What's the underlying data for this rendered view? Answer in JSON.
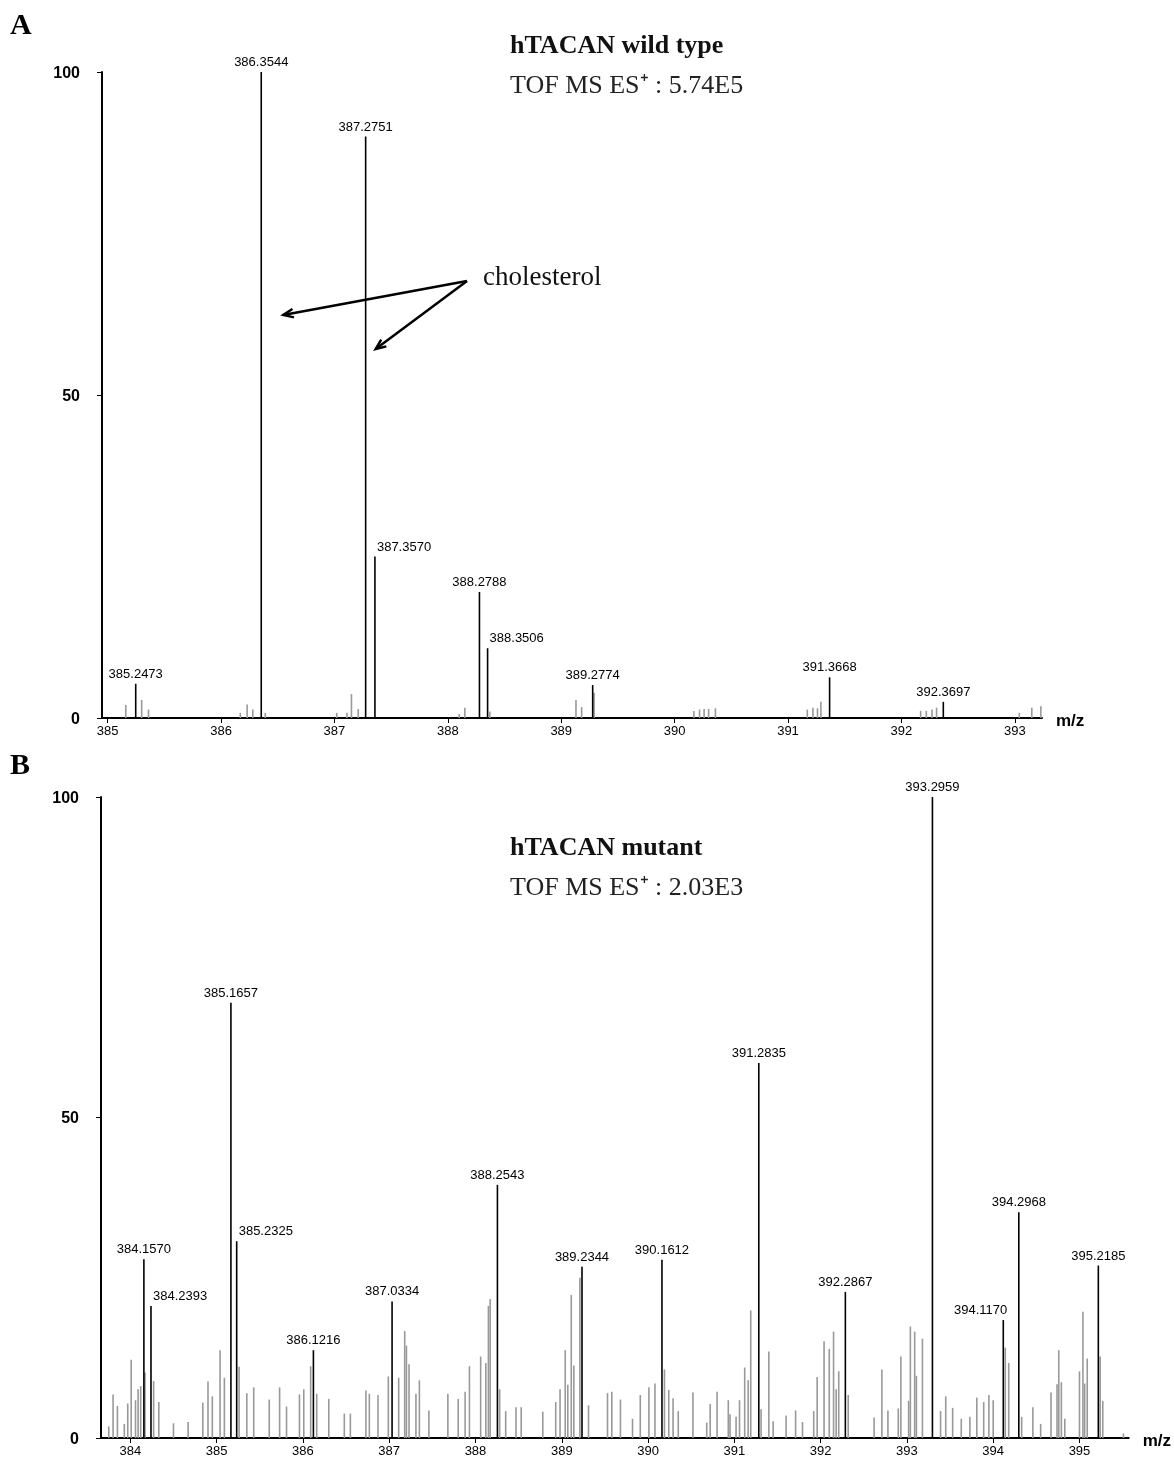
{
  "chart_data": [
    {
      "type": "bar",
      "title": "hTACAN wild type",
      "subtitle": "TOF MS ES⁺ : 5.74E5",
      "xlabel": "m/z",
      "xlim": [
        384.95,
        393.24
      ],
      "xticks": [
        385,
        386,
        387,
        388,
        389,
        390,
        391,
        392,
        393
      ],
      "ylim": [
        0,
        100
      ],
      "yticks": [
        0,
        50,
        100
      ],
      "series": [
        {
          "color": "#999999",
          "x": [
            385.16,
            385.3,
            385.36,
            386.17,
            386.23,
            386.28,
            386.39,
            387.02,
            387.11,
            387.15,
            387.21,
            388.1,
            388.15,
            388.37,
            389.13,
            389.18,
            389.29,
            390.17,
            390.22,
            390.26,
            390.3,
            390.36,
            391.17,
            391.22,
            391.26,
            391.29,
            392.17,
            392.22,
            392.27,
            392.31,
            393.04,
            393.15,
            393.23
          ],
          "values": [
            2.0,
            2.8,
            1.3,
            0.8,
            2.1,
            1.3,
            0.8,
            0.8,
            0.8,
            3.7,
            1.4,
            0.6,
            1.6,
            1.0,
            2.8,
            1.7,
            3.9,
            1.1,
            1.3,
            1.4,
            1.4,
            1.5,
            1.3,
            1.6,
            1.5,
            2.5,
            1.1,
            1.1,
            1.3,
            1.6,
            0.8,
            1.6,
            1.8
          ]
        },
        {
          "color": "#000000",
          "x": [
            385.2473,
            386.3544,
            387.2751,
            387.357,
            388.2788,
            388.3506,
            389.2774,
            391.3668,
            392.3697
          ],
          "values": [
            5.3,
            100,
            90,
            25,
            19.5,
            10.8,
            5.1,
            6.3,
            2.5
          ]
        }
      ],
      "annotations": [
        "A",
        "cholesterol",
        {
          "text": "385.2473",
          "x": 385.2473,
          "y": 5.3
        },
        {
          "text": "386.3544",
          "x": 386.3544,
          "y": 100
        },
        {
          "text": "387.2751",
          "x": 387.2751,
          "y": 90
        },
        {
          "text": "387.3570",
          "x": 387.357,
          "y": 25
        },
        {
          "text": "388.2788",
          "x": 388.2788,
          "y": 19.5
        },
        {
          "text": "388.3506",
          "x": 388.3506,
          "y": 10.8
        },
        {
          "text": "389.2774",
          "x": 389.2774,
          "y": 5.1
        },
        {
          "text": "391.3668",
          "x": 391.3668,
          "y": 6.3
        },
        {
          "text": "392.3697",
          "x": 392.3697,
          "y": 2.5
        }
      ]
    },
    {
      "type": "bar",
      "title": "hTACAN mutant",
      "subtitle": "TOF MS ES⁺ : 2.03E3",
      "xlabel": "m/z",
      "xlim": [
        383.66,
        395.57
      ],
      "xticks": [
        384,
        385,
        386,
        387,
        388,
        389,
        390,
        391,
        392,
        393,
        394,
        395
      ],
      "ylim": [
        0,
        100
      ],
      "yticks": [
        0,
        50,
        100
      ],
      "series": [
        {
          "color": "#999999",
          "x": [
            383.75,
            383.8,
            383.85,
            383.93,
            383.97,
            384.01,
            384.06,
            384.09,
            384.12,
            384.17,
            384.27,
            384.33,
            384.5,
            384.67,
            384.84,
            384.9,
            384.95,
            385.04,
            385.09,
            385.26,
            385.35,
            385.43,
            385.61,
            385.73,
            385.81,
            385.96,
            386.01,
            386.09,
            386.16,
            386.3,
            386.48,
            386.55,
            386.73,
            386.77,
            386.87,
            386.99,
            387.04,
            387.11,
            387.18,
            387.2,
            387.23,
            387.31,
            387.35,
            387.46,
            387.68,
            387.8,
            387.88,
            387.93,
            388.06,
            388.12,
            388.15,
            388.17,
            388.28,
            388.35,
            388.47,
            388.53,
            388.78,
            388.93,
            388.98,
            389.04,
            389.07,
            389.11,
            389.14,
            389.21,
            389.31,
            389.53,
            389.58,
            389.68,
            389.82,
            389.91,
            390.01,
            390.08,
            390.19,
            390.24,
            390.29,
            390.35,
            390.52,
            390.68,
            390.72,
            390.8,
            390.93,
            390.95,
            391.02,
            391.06,
            391.12,
            391.16,
            391.19,
            391.31,
            391.4,
            391.45,
            391.6,
            391.71,
            391.79,
            391.92,
            391.96,
            392.04,
            392.1,
            392.15,
            392.18,
            392.21,
            392.32,
            392.62,
            392.71,
            392.78,
            392.9,
            392.93,
            393.02,
            393.04,
            393.09,
            393.11,
            393.18,
            393.39,
            393.45,
            393.53,
            393.63,
            393.73,
            393.81,
            393.89,
            393.95,
            394.0,
            394.14,
            394.18,
            394.33,
            394.46,
            394.55,
            394.67,
            394.74,
            394.76,
            394.79,
            394.83,
            395.0,
            395.04,
            395.06,
            395.09,
            395.24,
            395.27,
            395.51
          ],
          "values": [
            1.8,
            6.8,
            5.0,
            2.2,
            5.4,
            12.2,
            5.9,
            7.6,
            8.1,
            10.2,
            8.9,
            5.6,
            2.3,
            2.5,
            5.5,
            8.8,
            6.5,
            13.7,
            9.4,
            11.1,
            7.0,
            7.9,
            6.0,
            7.9,
            4.9,
            6.8,
            7.6,
            11.2,
            6.9,
            6.1,
            3.8,
            3.8,
            7.4,
            6.9,
            6.7,
            9.6,
            null,
            9.4,
            16.7,
            14.4,
            11.5,
            6.9,
            9.0,
            4.3,
            6.9,
            6.1,
            7.2,
            11.2,
            12.7,
            11.7,
            20.6,
            21.7,
            7.6,
            4.2,
            4.8,
            4.8,
            4.1,
            5.6,
            7.6,
            13.7,
            8.3,
            22.3,
            11.3,
            25.0,
            5.1,
            7.0,
            7.2,
            6.0,
            3.0,
            6.7,
            7.9,
            8.5,
            10.7,
            7.5,
            6.2,
            4.2,
            7.1,
            2.4,
            5.3,
            7.2,
            5.9,
            3.7,
            3.3,
            5.9,
            11.0,
            9.0,
            19.9,
            4.5,
            13.5,
            2.6,
            3.5,
            4.3,
            2.5,
            4.2,
            9.5,
            15.1,
            13.9,
            16.6,
            7.6,
            10.4,
            6.7,
            3.2,
            10.7,
            4.3,
            4.6,
            12.7,
            5.8,
            17.4,
            16.6,
            9.7,
            15.5,
            4.2,
            6.5,
            4.7,
            3.0,
            3.3,
            6.3,
            5.6,
            6.7,
            5.9,
            14.1,
            11.7,
            3.3,
            4.8,
            2.2,
            7.1,
            8.4,
            13.7,
            8.7,
            3.0,
            10.4,
            19.7,
            8.5,
            12.4,
            12.7,
            5.8,
            0.7
          ]
        },
        {
          "color": "#000000",
          "x": [
            384.157,
            384.2393,
            385.1657,
            385.2325,
            386.1216,
            387.0334,
            388.2543,
            389.2344,
            390.1612,
            391.2835,
            392.2867,
            393.2959,
            394.117,
            394.2968,
            395.2185
          ],
          "values": [
            27.9,
            20.6,
            67.9,
            30.7,
            13.7,
            21.3,
            39.5,
            26.7,
            27.8,
            58.5,
            22.8,
            100,
            18.4,
            35.2,
            26.9
          ]
        }
      ],
      "annotations": [
        "B",
        {
          "text": "384.1570",
          "x": 384.157,
          "y": 27.9
        },
        {
          "text": "384.2393",
          "x": 384.2393,
          "y": 20.6
        },
        {
          "text": "385.1657",
          "x": 385.1657,
          "y": 67.9
        },
        {
          "text": "385.2325",
          "x": 385.2325,
          "y": 30.7
        },
        {
          "text": "386.1216",
          "x": 386.1216,
          "y": 13.7
        },
        {
          "text": "387.0334",
          "x": 387.0334,
          "y": 21.3
        },
        {
          "text": "388.2543",
          "x": 388.2543,
          "y": 39.5
        },
        {
          "text": "389.2344",
          "x": 389.2344,
          "y": 26.7
        },
        {
          "text": "390.1612",
          "x": 390.1612,
          "y": 27.8
        },
        {
          "text": "391.2835",
          "x": 391.2835,
          "y": 58.5
        },
        {
          "text": "392.2867",
          "x": 392.2867,
          "y": 22.8
        },
        {
          "text": "393.2959",
          "x": 393.2959,
          "y": 100
        },
        {
          "text": "394.1170",
          "x": 394.117,
          "y": 18.4
        },
        {
          "text": "394.2968",
          "x": 394.2968,
          "y": 35.2
        },
        {
          "text": "395.2185",
          "x": 395.2185,
          "y": 26.9
        }
      ]
    }
  ]
}
